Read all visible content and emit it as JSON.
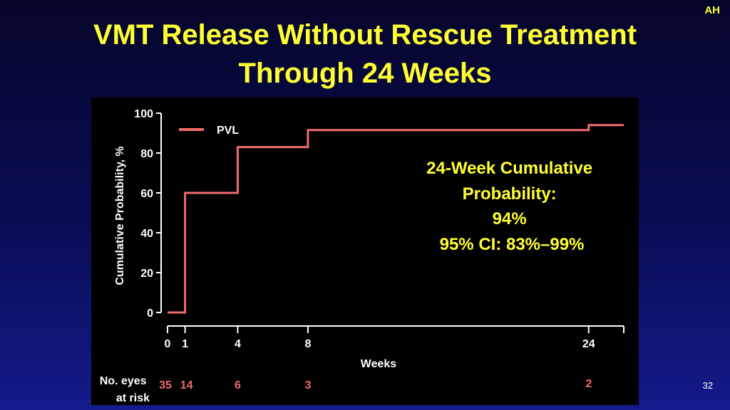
{
  "badge": "AH",
  "title": {
    "line1": "VMT Release Without Rescue Treatment",
    "line2": "Through 24 Weeks"
  },
  "slide_number": "32",
  "colors": {
    "title": "#ffff33",
    "series": "#f26b6b",
    "axis_text": "#ffffff",
    "annotation": "#ffff33",
    "chart_background": "#000000"
  },
  "chart_data": {
    "type": "line",
    "step": true,
    "xlabel": "Weeks",
    "ylabel": "Cumulative Probability, %",
    "xlim": [
      0,
      26
    ],
    "ylim": [
      0,
      100
    ],
    "x_ticks": [
      0,
      1,
      4,
      8,
      24
    ],
    "y_ticks": [
      0,
      20,
      40,
      60,
      80,
      100
    ],
    "legend": "top-left",
    "series": [
      {
        "name": "PVL",
        "points": [
          {
            "x": 0,
            "y": 0
          },
          {
            "x": 1,
            "y": 60
          },
          {
            "x": 4,
            "y": 83
          },
          {
            "x": 8,
            "y": 91.5
          },
          {
            "x": 24,
            "y": 94
          },
          {
            "x": 26,
            "y": 94
          }
        ]
      }
    ],
    "annotation": {
      "lines": [
        "24-Week Cumulative",
        "Probability:",
        "94%",
        "95% CI: 83%–99%"
      ]
    },
    "at_risk": {
      "label_lines": [
        "No. eyes",
        "at risk"
      ],
      "values": [
        {
          "x": 0,
          "n": "35"
        },
        {
          "x": 1,
          "n": "14"
        },
        {
          "x": 4,
          "n": "6"
        },
        {
          "x": 8,
          "n": "3"
        },
        {
          "x": 24,
          "n": "2"
        }
      ]
    }
  }
}
